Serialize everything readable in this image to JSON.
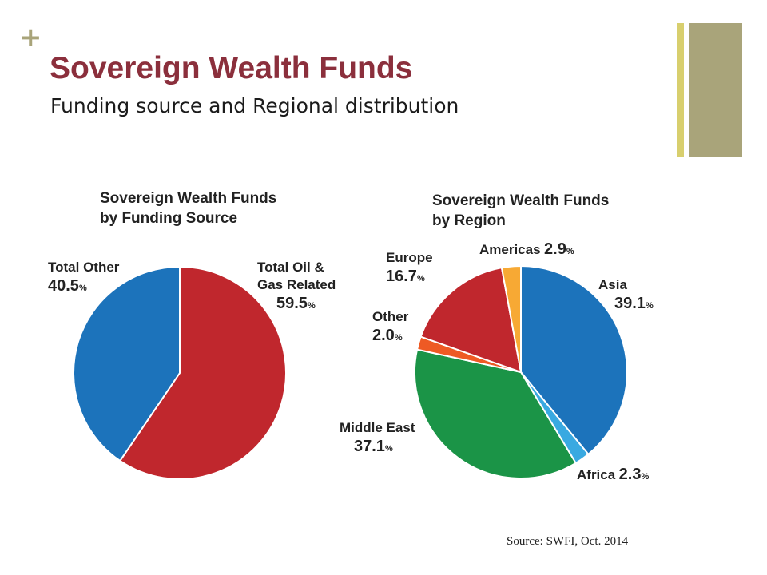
{
  "slide": {
    "plus": "+",
    "title": "Sovereign Wealth Funds",
    "subtitle": "Funding source and Regional distribution",
    "source": "Source: SWFI, Oct. 2014",
    "accent_colors": {
      "title": "#8b2f3c",
      "bar_thin": "#d8cf6e",
      "bar_wide": "#a9a47a"
    }
  },
  "chart_data": [
    {
      "type": "pie",
      "title_line1": "Sovereign Wealth Funds",
      "title_line2": "by Funding Source",
      "slices": [
        {
          "label": "Total Oil &",
          "label2": "Gas Related",
          "value": 59.5,
          "value_text": "59.5",
          "color": "#c0272d"
        },
        {
          "label": "Total Other",
          "value": 40.5,
          "value_text": "40.5",
          "color": "#1c73bb"
        }
      ],
      "unit": "%"
    },
    {
      "type": "pie",
      "title_line1": "Sovereign Wealth Funds",
      "title_line2": "by Region",
      "slices": [
        {
          "label": "Asia",
          "value": 39.1,
          "value_text": "39.1",
          "color": "#1c73bb"
        },
        {
          "label": "Africa",
          "value": 2.3,
          "value_text": "2.3",
          "color": "#39a9e1"
        },
        {
          "label": "Middle East",
          "value": 37.1,
          "value_text": "37.1",
          "color": "#1b9447"
        },
        {
          "label": "Other",
          "value": 2.0,
          "value_text": "2.0",
          "color": "#ee5a24"
        },
        {
          "label": "Europe",
          "value": 16.7,
          "value_text": "16.7",
          "color": "#c0272d"
        },
        {
          "label": "Americas",
          "value": 2.9,
          "value_text": "2.9",
          "color": "#f7a934"
        }
      ],
      "unit": "%"
    }
  ]
}
